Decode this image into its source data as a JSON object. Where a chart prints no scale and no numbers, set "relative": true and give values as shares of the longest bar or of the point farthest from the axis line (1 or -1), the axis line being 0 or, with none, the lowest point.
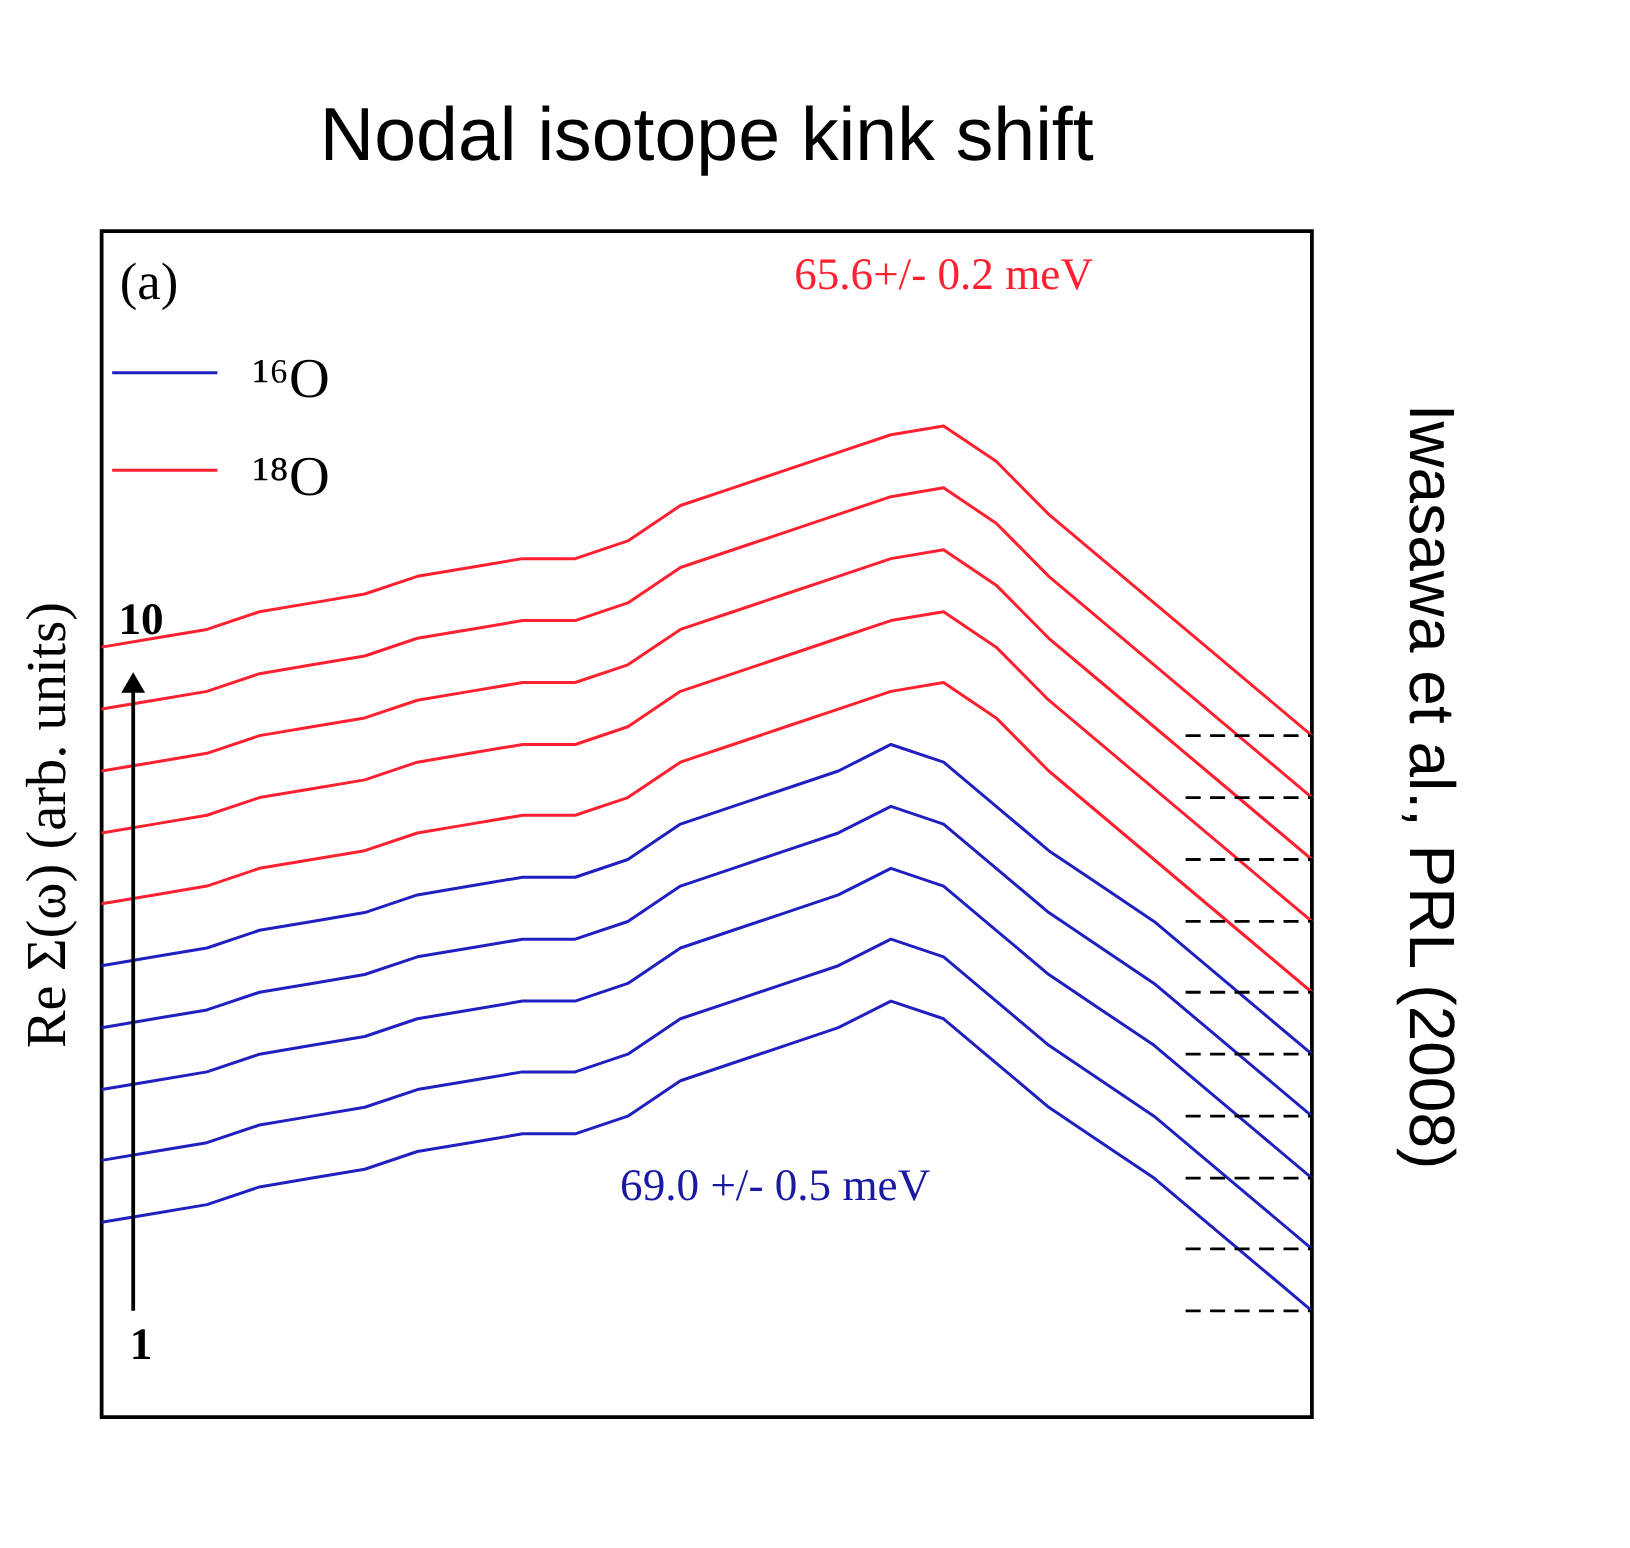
{
  "chart_data": {
    "type": "line",
    "title": "Nodal isotope kink shift",
    "ylabel": "Re Σ(ω) (arb. units)",
    "relative": true,
    "categories": [
      null,
      null,
      null,
      null,
      null,
      null,
      null,
      null,
      null,
      null,
      null,
      null,
      null,
      null,
      null,
      null,
      null,
      null,
      null,
      null,
      null,
      null,
      null,
      null
    ],
    "series": [
      {
        "name": "¹⁶O",
        "color": "#2020c0",
        "values": [
          0.1,
          0.11,
          0.12,
          0.14,
          0.15,
          0.16,
          0.18,
          0.19,
          0.2,
          0.2,
          0.22,
          0.26,
          0.28,
          0.3,
          0.32,
          0.35,
          0.33,
          0.28,
          0.23,
          0.19,
          0.15,
          0.1,
          0.05,
          0.0
        ]
      },
      {
        "color": "#2020c0",
        "values": [
          0.17,
          0.18,
          0.19,
          0.21,
          0.22,
          0.23,
          0.25,
          0.26,
          0.27,
          0.27,
          0.29,
          0.33,
          0.35,
          0.37,
          0.39,
          0.42,
          0.4,
          0.35,
          0.3,
          0.26,
          0.22,
          0.17,
          0.12,
          0.07
        ]
      },
      {
        "color": "#2020c0",
        "values": [
          0.25,
          0.26,
          0.27,
          0.29,
          0.3,
          0.31,
          0.33,
          0.34,
          0.35,
          0.35,
          0.37,
          0.41,
          0.43,
          0.45,
          0.47,
          0.5,
          0.48,
          0.43,
          0.38,
          0.34,
          0.3,
          0.25,
          0.2,
          0.15
        ]
      },
      {
        "color": "#2020c0",
        "values": [
          0.32,
          0.33,
          0.34,
          0.36,
          0.37,
          0.38,
          0.4,
          0.41,
          0.42,
          0.42,
          0.44,
          0.48,
          0.5,
          0.52,
          0.54,
          0.57,
          0.55,
          0.5,
          0.45,
          0.41,
          0.37,
          0.32,
          0.27,
          0.22
        ]
      },
      {
        "color": "#2020c0",
        "values": [
          0.39,
          0.4,
          0.41,
          0.43,
          0.44,
          0.45,
          0.47,
          0.48,
          0.49,
          0.49,
          0.51,
          0.55,
          0.57,
          0.59,
          0.61,
          0.64,
          0.62,
          0.57,
          0.52,
          0.48,
          0.44,
          0.39,
          0.34,
          0.29
        ]
      },
      {
        "name": "¹⁸O",
        "color": "#ff2030",
        "values": [
          0.46,
          0.47,
          0.48,
          0.5,
          0.51,
          0.52,
          0.54,
          0.55,
          0.56,
          0.56,
          0.58,
          0.62,
          0.64,
          0.66,
          0.68,
          0.7,
          0.71,
          0.67,
          0.61,
          0.56,
          0.51,
          0.46,
          0.41,
          0.36
        ]
      },
      {
        "color": "#ff2030",
        "values": [
          0.54,
          0.55,
          0.56,
          0.58,
          0.59,
          0.6,
          0.62,
          0.63,
          0.64,
          0.64,
          0.66,
          0.7,
          0.72,
          0.74,
          0.76,
          0.78,
          0.79,
          0.75,
          0.69,
          0.64,
          0.59,
          0.54,
          0.49,
          0.44
        ]
      },
      {
        "color": "#ff2030",
        "values": [
          0.61,
          0.62,
          0.63,
          0.65,
          0.66,
          0.67,
          0.69,
          0.7,
          0.71,
          0.71,
          0.73,
          0.77,
          0.79,
          0.81,
          0.83,
          0.85,
          0.86,
          0.82,
          0.76,
          0.71,
          0.66,
          0.61,
          0.56,
          0.51
        ]
      },
      {
        "color": "#ff2030",
        "values": [
          0.68,
          0.69,
          0.7,
          0.72,
          0.73,
          0.74,
          0.76,
          0.77,
          0.78,
          0.78,
          0.8,
          0.84,
          0.86,
          0.88,
          0.9,
          0.92,
          0.93,
          0.89,
          0.83,
          0.78,
          0.73,
          0.68,
          0.63,
          0.58
        ]
      },
      {
        "color": "#ff2030",
        "values": [
          0.75,
          0.76,
          0.77,
          0.79,
          0.8,
          0.81,
          0.83,
          0.84,
          0.85,
          0.85,
          0.87,
          0.91,
          0.93,
          0.95,
          0.97,
          0.99,
          1.0,
          0.96,
          0.9,
          0.85,
          0.8,
          0.75,
          0.7,
          0.65
        ]
      }
    ],
    "ref_lines": [
      {
        "axis": "y",
        "value": 0.0,
        "color": "#000000",
        "line_style": "dashed"
      },
      {
        "axis": "y",
        "value": 0.07,
        "color": "#000000",
        "line_style": "dashed"
      },
      {
        "axis": "y",
        "value": 0.15,
        "color": "#000000",
        "line_style": "dashed"
      },
      {
        "axis": "y",
        "value": 0.22,
        "color": "#000000",
        "line_style": "dashed"
      },
      {
        "axis": "y",
        "value": 0.29,
        "color": "#000000",
        "line_style": "dashed"
      },
      {
        "axis": "y",
        "value": 0.36,
        "color": "#000000",
        "line_style": "dashed"
      },
      {
        "axis": "y",
        "value": 0.44,
        "color": "#000000",
        "line_style": "dashed"
      },
      {
        "axis": "y",
        "value": 0.51,
        "color": "#000000",
        "line_style": "dashed"
      },
      {
        "axis": "y",
        "value": 0.58,
        "color": "#000000",
        "line_style": "dashed"
      },
      {
        "axis": "y",
        "value": 0.65,
        "color": "#000000",
        "line_style": "dashed"
      }
    ],
    "annotations": [
      "(a)",
      "10",
      "1",
      "Iwasawa et al., PRL (2008)",
      "65.6+/- 0.2 meV",
      "69.0 +/- 0.5 meV"
    ],
    "legend": "top left",
    "grid": false,
    "marker": "none",
    "line_style": "solid"
  }
}
